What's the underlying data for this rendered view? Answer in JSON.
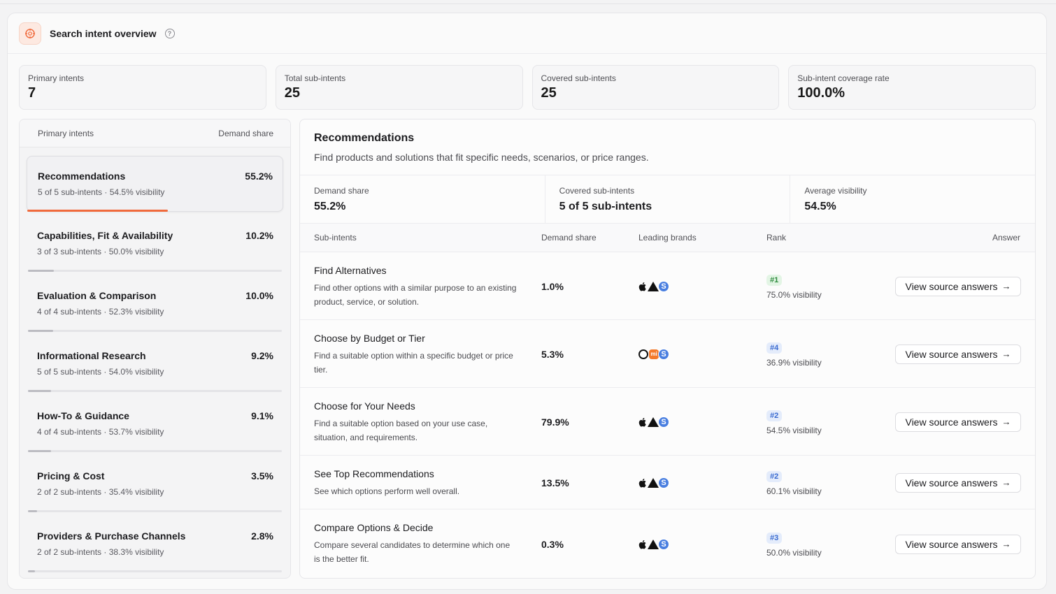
{
  "header": {
    "title": "Search intent overview"
  },
  "stats": [
    {
      "label": "Primary intents",
      "value": "7"
    },
    {
      "label": "Total sub-intents",
      "value": "25"
    },
    {
      "label": "Covered sub-intents",
      "value": "25"
    },
    {
      "label": "Sub-intent coverage rate",
      "value": "100.0%"
    }
  ],
  "left": {
    "col_intents": "Primary intents",
    "col_share": "Demand share",
    "intents": [
      {
        "name": "Recommendations",
        "pct": "55.2%",
        "sub": "5 of 5 sub-intents · 54.5% visibility",
        "bar": 0.552
      },
      {
        "name": "Capabilities, Fit & Availability",
        "pct": "10.2%",
        "sub": "3 of 3 sub-intents · 50.0% visibility",
        "bar": 0.102
      },
      {
        "name": "Evaluation & Comparison",
        "pct": "10.0%",
        "sub": "4 of 4 sub-intents · 52.3% visibility",
        "bar": 0.1
      },
      {
        "name": "Informational Research",
        "pct": "9.2%",
        "sub": "5 of 5 sub-intents · 54.0% visibility",
        "bar": 0.092
      },
      {
        "name": "How-To & Guidance",
        "pct": "9.1%",
        "sub": "4 of 4 sub-intents · 53.7% visibility",
        "bar": 0.091
      },
      {
        "name": "Pricing & Cost",
        "pct": "3.5%",
        "sub": "2 of 2 sub-intents · 35.4% visibility",
        "bar": 0.035
      },
      {
        "name": "Providers & Purchase Channels",
        "pct": "2.8%",
        "sub": "2 of 2 sub-intents · 38.3% visibility",
        "bar": 0.028
      }
    ]
  },
  "detail": {
    "title": "Recommendations",
    "desc": "Find products and solutions that fit specific needs, scenarios, or price ranges.",
    "stats": [
      {
        "label": "Demand share",
        "value": "55.2%"
      },
      {
        "label": "Covered sub-intents",
        "value": "5 of 5 sub-intents"
      },
      {
        "label": "Average visibility",
        "value": "54.5%"
      }
    ],
    "columns": {
      "sub": "Sub-intents",
      "demand": "Demand share",
      "brands": "Leading brands",
      "rank": "Rank",
      "answer": "Answer"
    },
    "rows": [
      {
        "title": "Find Alternatives",
        "desc": "Find other options with a similar purpose to an existing product, service, or solution.",
        "demand": "1.0%",
        "brands": [
          "apple",
          "triangle",
          "s"
        ],
        "rank": "#1",
        "rank_color": "green",
        "vis": "75.0% visibility",
        "btn": "View source answers"
      },
      {
        "title": "Choose by Budget or Tier",
        "desc": "Find a suitable option within a specific budget or price tier.",
        "demand": "5.3%",
        "brands": [
          "a",
          "mi",
          "s"
        ],
        "rank": "#4",
        "rank_color": "blue",
        "vis": "36.9% visibility",
        "btn": "View source answers"
      },
      {
        "title": "Choose for Your Needs",
        "desc": "Find a suitable option based on your use case, situation, and requirements.",
        "demand": "79.9%",
        "brands": [
          "apple",
          "triangle",
          "s"
        ],
        "rank": "#2",
        "rank_color": "blue",
        "vis": "54.5% visibility",
        "btn": "View source answers"
      },
      {
        "title": "See Top Recommendations",
        "desc": "See which options perform well overall.",
        "demand": "13.5%",
        "brands": [
          "apple",
          "triangle",
          "s"
        ],
        "rank": "#2",
        "rank_color": "blue",
        "vis": "60.1% visibility",
        "btn": "View source answers"
      },
      {
        "title": "Compare Options & Decide",
        "desc": "Compare several candidates to determine which one is the better fit.",
        "demand": "0.3%",
        "brands": [
          "apple",
          "triangle",
          "s"
        ],
        "rank": "#3",
        "rank_color": "blue",
        "vis": "50.0% visibility",
        "btn": "View source answers"
      }
    ]
  },
  "colors": {
    "accent": "#f06a3c",
    "rank_green": "#2e8b3e",
    "rank_blue": "#3a6bd0"
  },
  "icons": {
    "logo": "target-icon",
    "help": "help-circle-icon",
    "arrow": "arrow-right-icon"
  }
}
